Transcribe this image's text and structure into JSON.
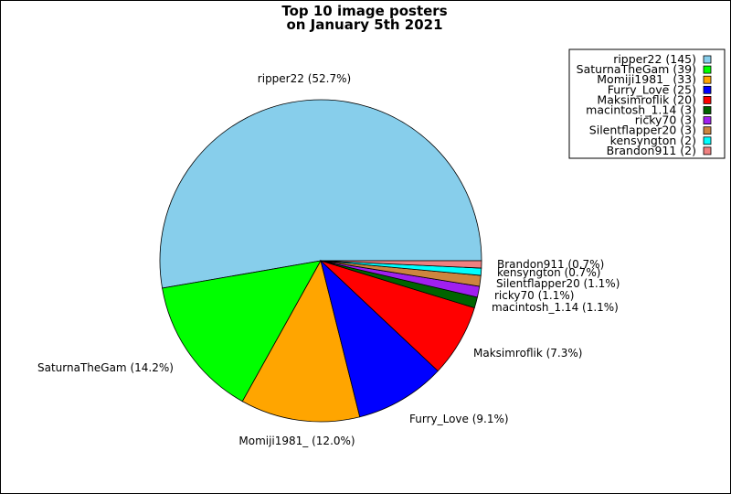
{
  "chart_data": {
    "type": "pie",
    "title_lines": [
      "Top 10 image posters",
      "on January 5th 2021"
    ],
    "slices": [
      {
        "name": "ripper22",
        "value": 145,
        "percent_label": "ripper22 (52.7%)",
        "legend_label": "ripper22 (145)",
        "color": "#87ceeb"
      },
      {
        "name": "SaturnaTheGam",
        "value": 39,
        "percent_label": "SaturnaTheGam (14.2%)",
        "legend_label": "SaturnaTheGam (39)",
        "color": "#00ff00"
      },
      {
        "name": "Momiji1981_",
        "value": 33,
        "percent_label": "Momiji1981_ (12.0%)",
        "legend_label": "Momiji1981_ (33)",
        "color": "#ffa500"
      },
      {
        "name": "Furry_Love",
        "value": 25,
        "percent_label": "Furry_Love (9.1%)",
        "legend_label": "Furry_Love (25)",
        "color": "#0000ff"
      },
      {
        "name": "Maksimroflik",
        "value": 20,
        "percent_label": "Maksimroflik (7.3%)",
        "legend_label": "Maksimroflik (20)",
        "color": "#ff0000"
      },
      {
        "name": "macintosh_1.14",
        "value": 3,
        "percent_label": "macintosh_1.14 (1.1%)",
        "legend_label": "macintosh_1.14 (3)",
        "color": "#006400"
      },
      {
        "name": "ricky70",
        "value": 3,
        "percent_label": "ricky70 (1.1%)",
        "legend_label": "ricky70 (3)",
        "color": "#a020f0"
      },
      {
        "name": "Silentflapper20",
        "value": 3,
        "percent_label": "Silentflapper20 (1.1%)",
        "legend_label": "Silentflapper20 (3)",
        "color": "#cd853f"
      },
      {
        "name": "kensyngton",
        "value": 2,
        "percent_label": "kensyngton (0.7%)",
        "legend_label": "kensyngton (2)",
        "color": "#00ffff"
      },
      {
        "name": "Brandon911",
        "value": 2,
        "percent_label": "Brandon911 (0.7%)",
        "legend_label": "Brandon911 (2)",
        "color": "#f08080"
      }
    ],
    "legend_position": "top-right"
  }
}
